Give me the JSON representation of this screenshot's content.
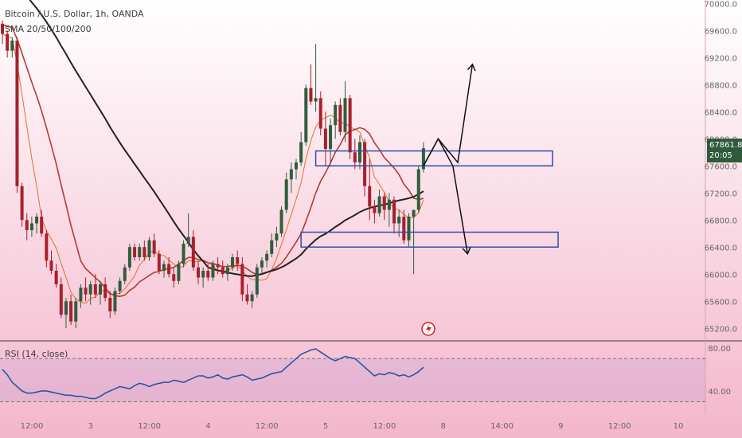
{
  "header": {
    "symbol_line": "Bitcoin / U.S. Dollar, 1h, OANDA",
    "indicator_line": "SMA 20/50/100/200",
    "rsi_line": "RSI (14, close)"
  },
  "price_tag": {
    "price": "67861.8",
    "countdown": "20:05"
  },
  "colors": {
    "background_top": "#ffffff",
    "background_bottom": "#f4b6cb",
    "candle_up": "#2e5e3c",
    "candle_down": "#a8202c",
    "sma_fast": "#e0722c",
    "sma_mid": "#b53a30",
    "sma_slow": "#222222",
    "zone_border": "#2d4ea8",
    "rsi_line": "#2a55a5",
    "axis_text": "#666666"
  },
  "chart_data": {
    "type": "candlestick",
    "price_axis": {
      "ticks": [
        "70000.0",
        "69600.0",
        "69200.0",
        "68800.0",
        "68400.0",
        "68000.0",
        "67600.0",
        "67200.0",
        "66800.0",
        "66400.0",
        "66000.0",
        "65600.0",
        "65200.0"
      ],
      "range": [
        65050,
        70050
      ]
    },
    "time_axis": {
      "ticks": [
        "12:00",
        "3",
        "12:00",
        "4",
        "12:00",
        "5",
        "12:00",
        "8",
        "14:00",
        "9",
        "12:00",
        "10"
      ]
    },
    "rsi_axis": {
      "ticks": [
        "80.00",
        "40.00"
      ],
      "range": [
        20,
        85
      ],
      "band": [
        70,
        30
      ]
    },
    "candles_ohlc": [
      [
        69700,
        69750,
        69400,
        69550
      ],
      [
        69550,
        69600,
        69200,
        69300
      ],
      [
        69300,
        69500,
        69200,
        69450
      ],
      [
        69450,
        69500,
        67200,
        67300
      ],
      [
        67300,
        67350,
        66700,
        66800
      ],
      [
        66800,
        66900,
        66500,
        66650
      ],
      [
        66650,
        66850,
        66550,
        66750
      ],
      [
        66750,
        66900,
        66600,
        66850
      ],
      [
        66850,
        66950,
        66550,
        66600
      ],
      [
        66600,
        66650,
        66100,
        66200
      ],
      [
        66200,
        66350,
        66000,
        66050
      ],
      [
        66050,
        66150,
        65800,
        65850
      ],
      [
        65850,
        65950,
        65350,
        65400
      ],
      [
        65400,
        65650,
        65200,
        65600
      ],
      [
        65600,
        65700,
        65250,
        65300
      ],
      [
        65300,
        65650,
        65200,
        65600
      ],
      [
        65600,
        65850,
        65500,
        65800
      ],
      [
        65800,
        65950,
        65600,
        65700
      ],
      [
        65700,
        65900,
        65550,
        65850
      ],
      [
        65850,
        66000,
        65650,
        65700
      ],
      [
        65700,
        65900,
        65550,
        65850
      ],
      [
        65850,
        65950,
        65600,
        65650
      ],
      [
        65650,
        65750,
        65350,
        65450
      ],
      [
        65450,
        65800,
        65400,
        65750
      ],
      [
        65750,
        65950,
        65700,
        65900
      ],
      [
        65900,
        66150,
        65850,
        66100
      ],
      [
        66100,
        66450,
        66050,
        66400
      ],
      [
        66400,
        66450,
        66200,
        66250
      ],
      [
        66250,
        66450,
        66200,
        66400
      ],
      [
        66400,
        66500,
        66200,
        66250
      ],
      [
        66250,
        66550,
        66200,
        66500
      ],
      [
        66500,
        66600,
        66250,
        66300
      ],
      [
        66300,
        66350,
        66000,
        66050
      ],
      [
        66050,
        66200,
        65950,
        66150
      ],
      [
        66150,
        66250,
        65950,
        66000
      ],
      [
        66000,
        66100,
        65800,
        65900
      ],
      [
        65900,
        66200,
        65850,
        66150
      ],
      [
        66150,
        66500,
        66100,
        66450
      ],
      [
        66450,
        66900,
        66400,
        66550
      ],
      [
        66550,
        66650,
        66050,
        66100
      ],
      [
        66100,
        66200,
        65850,
        65950
      ],
      [
        65950,
        66100,
        65800,
        66050
      ],
      [
        66050,
        66150,
        65900,
        65950
      ],
      [
        65950,
        66200,
        65900,
        66150
      ],
      [
        66150,
        66250,
        66000,
        66100
      ],
      [
        66100,
        66200,
        65950,
        66000
      ],
      [
        66000,
        66150,
        65900,
        66100
      ],
      [
        66100,
        66300,
        66050,
        66250
      ],
      [
        66250,
        66350,
        66050,
        66150
      ],
      [
        66150,
        66250,
        65600,
        65700
      ],
      [
        65700,
        65850,
        65550,
        65600
      ],
      [
        65600,
        65750,
        65500,
        65700
      ],
      [
        65700,
        66150,
        65650,
        66100
      ],
      [
        66100,
        66250,
        66000,
        66200
      ],
      [
        66200,
        66350,
        66100,
        66300
      ],
      [
        66300,
        66600,
        66250,
        66500
      ],
      [
        66500,
        66700,
        66400,
        66600
      ],
      [
        66600,
        67000,
        66550,
        66950
      ],
      [
        66950,
        67500,
        66900,
        67400
      ],
      [
        67400,
        67650,
        67200,
        67550
      ],
      [
        67550,
        67700,
        67400,
        67650
      ],
      [
        67650,
        68100,
        67600,
        67950
      ],
      [
        67950,
        68800,
        67900,
        68750
      ],
      [
        68750,
        69100,
        68500,
        68550
      ],
      [
        68550,
        69400,
        68400,
        68600
      ],
      [
        68600,
        68700,
        68050,
        68150
      ],
      [
        68150,
        68400,
        67600,
        67850
      ],
      [
        67850,
        68300,
        67650,
        68200
      ],
      [
        68200,
        68550,
        68000,
        68500
      ],
      [
        68500,
        68600,
        68050,
        68100
      ],
      [
        68100,
        68850,
        67950,
        68600
      ],
      [
        68600,
        68650,
        67700,
        67800
      ],
      [
        67800,
        68000,
        67550,
        67650
      ],
      [
        67650,
        68050,
        67550,
        67950
      ],
      [
        67950,
        68000,
        67150,
        67300
      ],
      [
        67300,
        67700,
        66800,
        67000
      ],
      [
        67000,
        67100,
        66750,
        66900
      ],
      [
        66900,
        67250,
        66850,
        67150
      ],
      [
        67150,
        67200,
        66800,
        66950
      ],
      [
        66950,
        67200,
        66700,
        67100
      ],
      [
        67100,
        67150,
        66600,
        66750
      ],
      [
        66750,
        66950,
        66550,
        66850
      ],
      [
        66850,
        66950,
        66450,
        66500
      ],
      [
        66500,
        66900,
        66400,
        66850
      ],
      [
        66850,
        66950,
        66000,
        66950
      ],
      [
        66950,
        67600,
        66900,
        67550
      ],
      [
        67550,
        67950,
        67500,
        67860
      ]
    ],
    "moving_averages": [
      {
        "name": "SMA 20",
        "period": 20
      },
      {
        "name": "SMA 50",
        "period": 50
      },
      {
        "name": "SMA 100",
        "period": 100
      },
      {
        "name": "SMA 200",
        "period": 200
      }
    ],
    "zones": [
      {
        "top": 67820,
        "bottom": 67600,
        "from_candle": 64,
        "to_edge": 694
      },
      {
        "top": 66620,
        "bottom": 66400,
        "from_candle": 61,
        "to_edge": 701
      }
    ],
    "projection_paths": [
      {
        "direction": "up",
        "points": [
          [
            86,
            67600
          ],
          [
            89,
            68000
          ],
          [
            93,
            67650
          ],
          [
            96,
            69100
          ]
        ]
      },
      {
        "direction": "down",
        "points": [
          [
            86,
            67600
          ],
          [
            89,
            68000
          ],
          [
            92,
            67600
          ],
          [
            95,
            66300
          ]
        ]
      }
    ],
    "rsi_values": [
      60,
      55,
      48,
      44,
      40,
      38,
      38,
      39,
      40,
      40,
      39,
      38,
      37,
      36,
      36,
      35,
      35,
      34,
      33,
      33,
      35,
      38,
      40,
      42,
      44,
      43,
      42,
      45,
      47,
      46,
      44,
      46,
      47,
      48,
      48,
      50,
      49,
      48,
      50,
      52,
      54,
      54,
      52,
      53,
      55,
      52,
      51,
      53,
      54,
      55,
      53,
      50,
      51,
      52,
      54,
      56,
      57,
      58,
      62,
      66,
      70,
      74,
      76,
      78,
      79,
      76,
      73,
      70,
      68,
      70,
      72,
      71,
      70,
      66,
      62,
      58,
      54,
      56,
      55,
      57,
      56,
      54,
      55,
      53,
      55,
      58,
      62
    ]
  }
}
